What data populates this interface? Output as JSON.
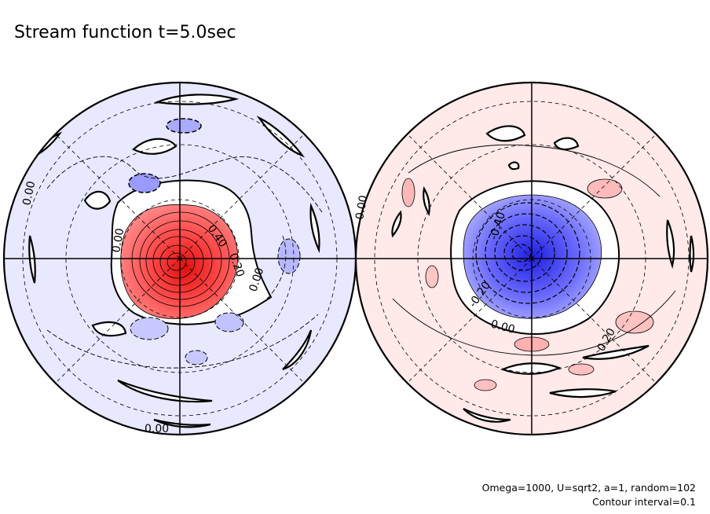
{
  "chart_data": {
    "type": "contour",
    "title": "Stream function t=5.0sec",
    "notes": [
      "Omega=1000, U=sqrt2, a=1, random=102",
      "Contour interval=0.1"
    ],
    "contour_interval": 0.1,
    "colors": {
      "positive": "#ff4a4a",
      "negative": "#4a4aff",
      "weak_positive": "#ffe4e4",
      "weak_negative": "#e8e8ff",
      "line": "#000000"
    },
    "panels": [
      {
        "name": "left",
        "background_sign": "negative",
        "main_feature": {
          "sign": "positive",
          "peak_level": 1.0
        },
        "contour_labels": [
          "0.00",
          "0.00",
          "0.40",
          "0.20",
          "0.00",
          "0.00"
        ]
      },
      {
        "name": "right",
        "background_sign": "positive",
        "main_feature": {
          "sign": "negative",
          "peak_level": -1.0
        },
        "contour_labels": [
          "0.00",
          "-0.40",
          "-0.20",
          "0.00",
          "0.20"
        ]
      }
    ]
  }
}
